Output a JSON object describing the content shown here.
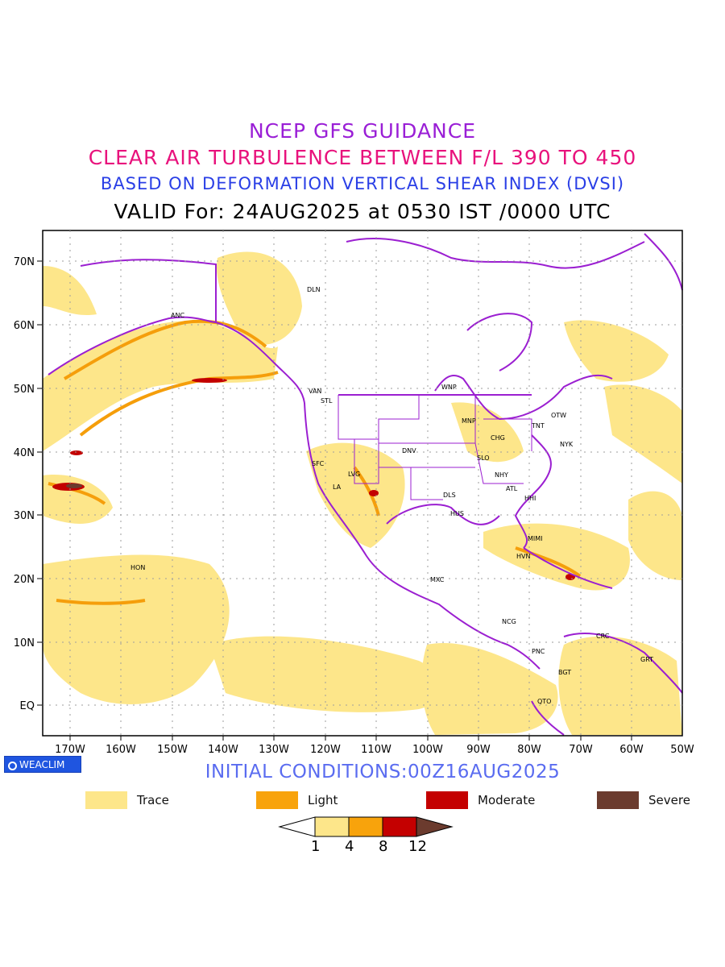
{
  "header": {
    "line1": "NCEP GFS GUIDANCE",
    "line2": "CLEAR AIR TURBULENCE BETWEEN F/L 390 TO 450",
    "line3": "BASED ON DEFORMATION VERTICAL SHEAR INDEX (DVSI)",
    "line4": "VALID For: 24AUG2025 at 0530 IST /0000 UTC"
  },
  "map": {
    "lat_labels": [
      "70N",
      "60N",
      "50N",
      "40N",
      "30N",
      "20N",
      "10N",
      "EQ"
    ],
    "lon_labels": [
      "170W",
      "160W",
      "150W",
      "140W",
      "130W",
      "120W",
      "110W",
      "100W",
      "90W",
      "80W",
      "70W",
      "60W",
      "50W"
    ],
    "stations": [
      "DLN",
      "ANC",
      "VAN",
      "STL",
      "WNP",
      "MNP",
      "TNT",
      "OTW",
      "CHG",
      "NYK",
      "DNV",
      "SFC",
      "SLO",
      "LVG",
      "NHY",
      "LA",
      "DLS",
      "ATL",
      "HHI",
      "HUS",
      "MIMI",
      "HVN",
      "HON",
      "MXC",
      "NCG",
      "CRC",
      "GRT",
      "PNC",
      "BGT",
      "QTO"
    ],
    "colors": {
      "trace": "#fde68a",
      "light": "#f59e0b",
      "moderate": "#c30000",
      "severe": "#6b3b2e",
      "borders": "#9b1fd1"
    }
  },
  "logo": {
    "text": "WEACLIM"
  },
  "footer": {
    "initial_conditions": "INITIAL CONDITIONS:00Z16AUG2025"
  },
  "legend": {
    "items": [
      {
        "label": "Trace",
        "color": "#fde68a"
      },
      {
        "label": "Light",
        "color": "#f8a30c"
      },
      {
        "label": "Moderate",
        "color": "#c40000"
      },
      {
        "label": "Severe",
        "color": "#6b3b2e"
      }
    ]
  },
  "colorbar": {
    "ticks": [
      "1",
      "4",
      "8",
      "12"
    ]
  }
}
